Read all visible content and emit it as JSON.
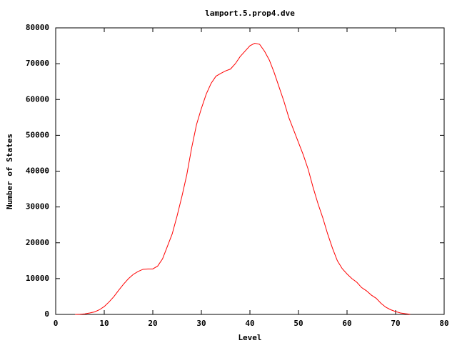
{
  "chart_data": {
    "type": "line",
    "title": "lamport.5.prop4.dve",
    "xlabel": "Level",
    "ylabel": "Number of States",
    "x": [
      4,
      5,
      6,
      7,
      8,
      9,
      10,
      11,
      12,
      13,
      14,
      15,
      16,
      17,
      18,
      19,
      20,
      21,
      22,
      23,
      24,
      25,
      26,
      27,
      28,
      29,
      30,
      31,
      32,
      33,
      34,
      35,
      36,
      37,
      38,
      39,
      40,
      41,
      42,
      43,
      44,
      45,
      46,
      47,
      48,
      49,
      50,
      51,
      52,
      53,
      54,
      55,
      56,
      57,
      58,
      59,
      60,
      61,
      62,
      63,
      64,
      65,
      66,
      67,
      68,
      69,
      70,
      71,
      72,
      73
    ],
    "values": [
      0,
      50,
      150,
      400,
      700,
      1300,
      2200,
      3500,
      5000,
      6800,
      8500,
      10000,
      11200,
      12000,
      12600,
      12700,
      12700,
      13500,
      15500,
      19000,
      22500,
      27500,
      33000,
      39000,
      46500,
      53000,
      57500,
      61500,
      64500,
      66500,
      67300,
      68000,
      68500,
      70000,
      72000,
      73500,
      75000,
      75700,
      75400,
      73500,
      71000,
      67500,
      63500,
      59500,
      55000,
      51500,
      48000,
      44500,
      40500,
      35500,
      31000,
      27000,
      22500,
      18500,
      15000,
      12800,
      11300,
      10000,
      9000,
      7500,
      6600,
      5400,
      4500,
      3100,
      2000,
      1300,
      800,
      400,
      200,
      50
    ],
    "color": "#ff0000",
    "xlim": [
      0,
      80
    ],
    "xticks": [
      0,
      10,
      20,
      30,
      40,
      50,
      60,
      70,
      80
    ],
    "ylim": [
      0,
      80000
    ],
    "yticks": [
      0,
      10000,
      20000,
      30000,
      40000,
      50000,
      60000,
      70000,
      80000
    ]
  }
}
